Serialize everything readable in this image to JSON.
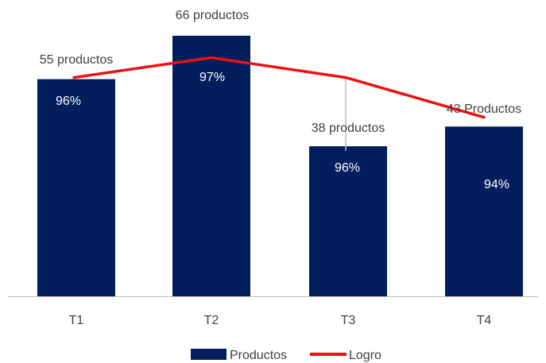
{
  "chart_data": {
    "type": "bar",
    "categories": [
      "T1",
      "T2",
      "T3",
      "T4"
    ],
    "series": [
      {
        "name": "Productos",
        "kind": "bar",
        "values": [
          55,
          66,
          38,
          43
        ],
        "data_labels": [
          "55 productos",
          "66 productos",
          "38 productos",
          "43 Productos"
        ]
      },
      {
        "name": "Logro",
        "kind": "line",
        "values": [
          96,
          97,
          96,
          94
        ],
        "data_labels": [
          "96%",
          "97%",
          "96%",
          "94%"
        ]
      }
    ],
    "title": "",
    "xlabel": "",
    "ylabel": "",
    "ylim": [
      0,
      67
    ],
    "grid": false,
    "legend_position": "bottom",
    "colors": {
      "bars": "#021e5c",
      "line": "#ee1111",
      "axis": "#bfbfbf",
      "connector": "#bfbfbf"
    }
  }
}
